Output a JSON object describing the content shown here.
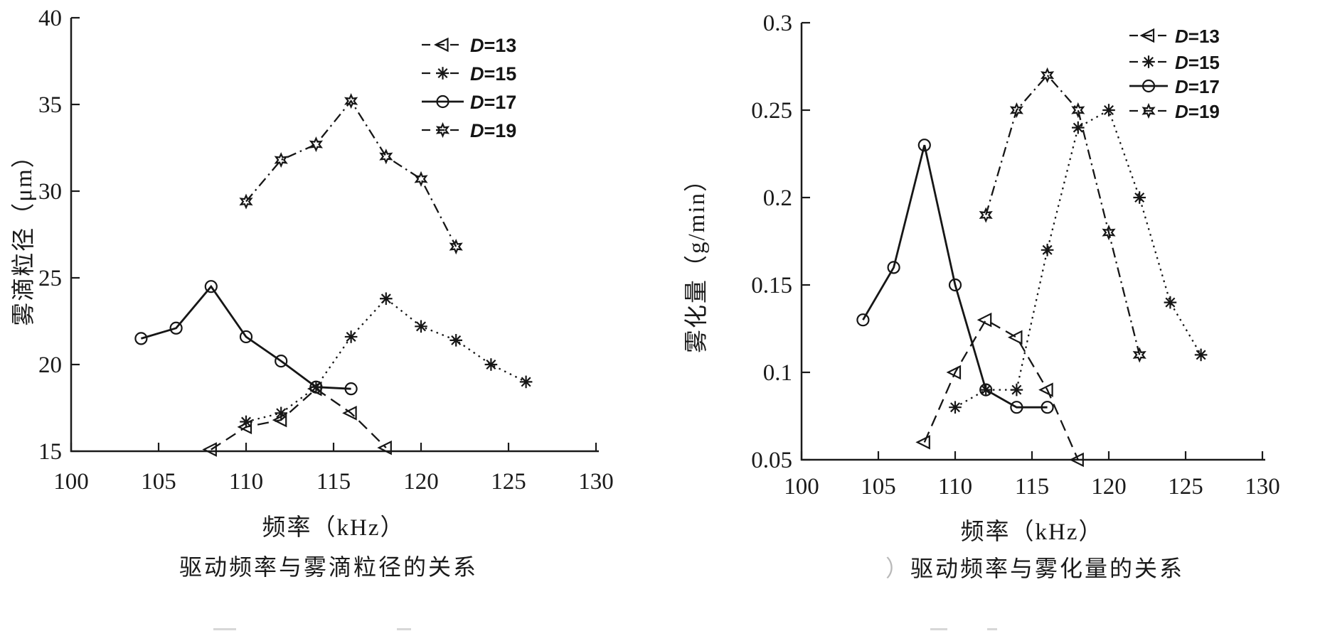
{
  "page": {
    "background": "#ffffff",
    "ink": "#1a1a1a"
  },
  "chart_data": [
    {
      "id": "droplet-size",
      "type": "line",
      "title": "驱动频率与雾滴粒径的关系",
      "xlabel": "频率（kHz）",
      "ylabel": "雾滴粒径（μm）",
      "xlim": [
        100,
        130
      ],
      "ylim": [
        15,
        40
      ],
      "xticks": [
        100,
        105,
        110,
        115,
        120,
        125,
        130
      ],
      "xtick_labels": [
        "100",
        "105",
        "110",
        "115",
        "120",
        "125",
        "130"
      ],
      "yticks": [
        15,
        20,
        25,
        30,
        35,
        40
      ],
      "ytick_labels": [
        "15",
        "20",
        "25",
        "30",
        "35",
        "40"
      ],
      "grid": false,
      "legend_position": "top-right",
      "series": [
        {
          "name": "D=13",
          "marker": "triangle-left",
          "line_style": "dashed",
          "x": [
            108,
            110,
            112,
            114,
            116,
            118
          ],
          "y": [
            15.1,
            16.4,
            16.8,
            18.6,
            17.2,
            15.2
          ]
        },
        {
          "name": "D=15",
          "marker": "asterisk",
          "line_style": "dotted",
          "x": [
            110,
            112,
            114,
            116,
            118,
            120,
            122,
            124,
            126
          ],
          "y": [
            16.7,
            17.2,
            18.7,
            21.6,
            23.8,
            22.2,
            21.4,
            20.0,
            19.0
          ]
        },
        {
          "name": "D=17",
          "marker": "circle",
          "line_style": "solid",
          "x": [
            104,
            106,
            108,
            110,
            112,
            114,
            116
          ],
          "y": [
            21.5,
            22.1,
            24.5,
            21.6,
            20.2,
            18.7,
            18.6
          ]
        },
        {
          "name": "D=19",
          "marker": "star6",
          "line_style": "dashdot",
          "x": [
            110,
            112,
            114,
            116,
            118,
            120,
            122
          ],
          "y": [
            29.4,
            31.8,
            32.7,
            35.2,
            32.0,
            30.7,
            26.8
          ]
        }
      ]
    },
    {
      "id": "atomization-rate",
      "type": "line",
      "title": "驱动频率与雾化量的关系",
      "caption_prefix": "）",
      "xlabel": "频率（kHz）",
      "ylabel": "雾化量（g/min）",
      "xlim": [
        100,
        130
      ],
      "ylim": [
        0.05,
        0.3
      ],
      "xticks": [
        100,
        105,
        110,
        115,
        120,
        125,
        130
      ],
      "xtick_labels": [
        "100",
        "105",
        "110",
        "115",
        "120",
        "125",
        "130"
      ],
      "yticks": [
        0.05,
        0.1,
        0.15,
        0.2,
        0.25,
        0.3
      ],
      "ytick_labels": [
        "0.05",
        "0.1",
        "0.15",
        "0.2",
        "0.25",
        "0.3"
      ],
      "grid": false,
      "legend_position": "top-right",
      "series": [
        {
          "name": "D=13",
          "marker": "triangle-left",
          "line_style": "dashed",
          "x": [
            108,
            110,
            112,
            114,
            116,
            118
          ],
          "y": [
            0.06,
            0.1,
            0.13,
            0.12,
            0.09,
            0.05
          ]
        },
        {
          "name": "D=15",
          "marker": "asterisk",
          "line_style": "dotted",
          "x": [
            110,
            112,
            114,
            116,
            118,
            120,
            122,
            124,
            126
          ],
          "y": [
            0.08,
            0.09,
            0.09,
            0.17,
            0.24,
            0.25,
            0.2,
            0.14,
            0.11
          ]
        },
        {
          "name": "D=17",
          "marker": "circle",
          "line_style": "solid",
          "x": [
            104,
            106,
            108,
            110,
            112,
            114,
            116
          ],
          "y": [
            0.13,
            0.16,
            0.23,
            0.15,
            0.09,
            0.08,
            0.08
          ]
        },
        {
          "name": "D=19",
          "marker": "star6",
          "line_style": "dashdot",
          "x": [
            112,
            114,
            116,
            118,
            120,
            122
          ],
          "y": [
            0.19,
            0.25,
            0.27,
            0.25,
            0.18,
            0.11
          ]
        }
      ]
    }
  ]
}
